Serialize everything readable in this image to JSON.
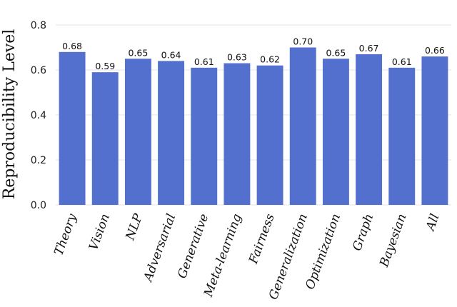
{
  "chart_data": {
    "type": "bar",
    "ylabel": "Reproducibility Level",
    "xlabel": "",
    "ylim": [
      0,
      0.8
    ],
    "yticks": [
      "0.0",
      "0.2",
      "0.4",
      "0.6",
      "0.8"
    ],
    "grid": true,
    "bar_color": "#5470cf",
    "categories": [
      "Theory",
      "Vision",
      "NLP",
      "Adversarial",
      "Generative",
      "Meta-learning",
      "Fairness",
      "Generalization",
      "Optimization",
      "Graph",
      "Bayesian",
      "All"
    ],
    "values": [
      0.68,
      0.59,
      0.65,
      0.64,
      0.61,
      0.63,
      0.62,
      0.7,
      0.65,
      0.67,
      0.61,
      0.66
    ],
    "value_labels": [
      "0.68",
      "0.59",
      "0.65",
      "0.64",
      "0.61",
      "0.63",
      "0.62",
      "0.70",
      "0.65",
      "0.67",
      "0.61",
      "0.66"
    ]
  }
}
